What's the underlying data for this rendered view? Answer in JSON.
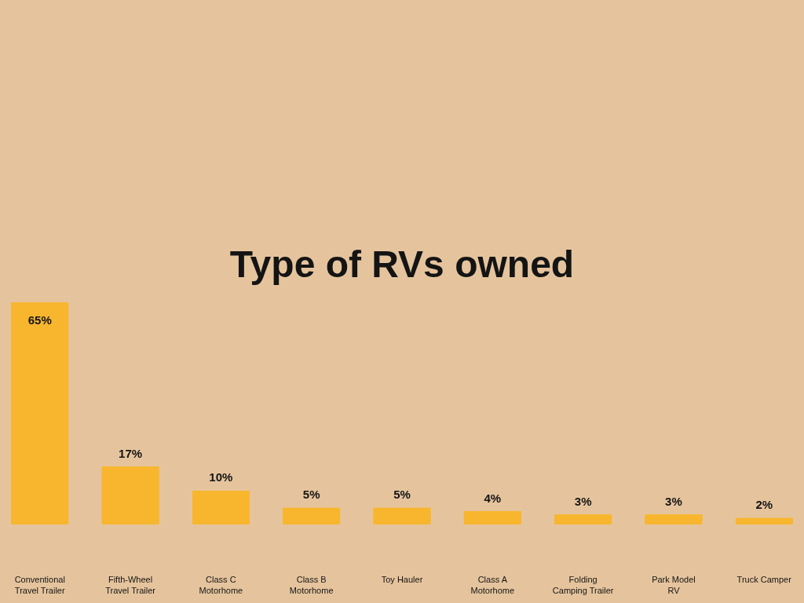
{
  "chart_data": {
    "type": "bar",
    "title": "Type of RVs owned",
    "categories": [
      "Conventional\nTravel Trailer",
      "Fifth-Wheel\nTravel Trailer",
      "Class C\nMotorhome",
      "Class B\nMotorhome",
      "Toy Hauler",
      "Class A\nMotorhome",
      "Folding\nCamping Trailer",
      "Park Model\nRV",
      "Truck Camper"
    ],
    "values": [
      65,
      17,
      10,
      5,
      5,
      4,
      3,
      3,
      2
    ],
    "value_labels": [
      "65%",
      "17%",
      "10%",
      "5%",
      "5%",
      "4%",
      "3%",
      "3%",
      "2%"
    ],
    "color": "#f8b62f",
    "tick_labels": "x"
  }
}
